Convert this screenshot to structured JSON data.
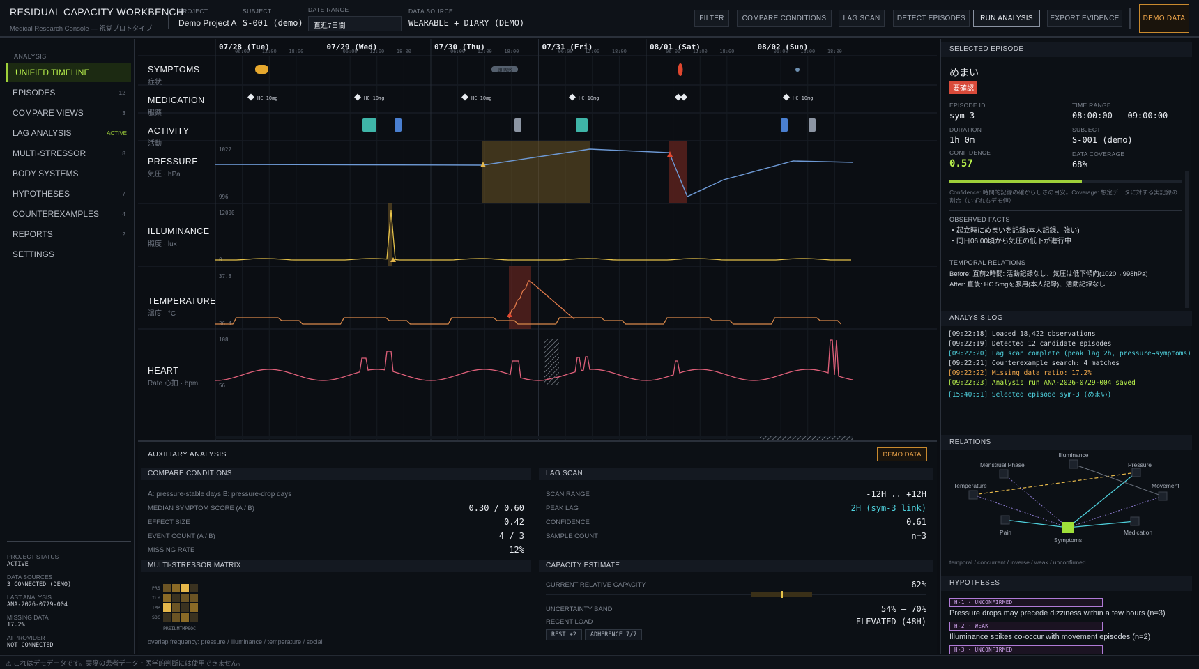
{
  "header": {
    "title": "RESIDUAL CAPACITY WORKBENCH",
    "subtitle": "Medical Research Console — 視覚プロトタイプ",
    "project_label": "PROJECT",
    "project_value": "Demo Project A",
    "subject_label": "SUBJECT",
    "subject_value": "S-001 (demo)",
    "range_label": "DATE RANGE",
    "range_value": "直近7日間",
    "source_label": "DATA SOURCE",
    "source_value": "WEARABLE + DIARY (DEMO)",
    "buttons": {
      "filter": "FILTER",
      "compare": "COMPARE CONDITIONS",
      "lag": "LAG SCAN",
      "detect": "DETECT EPISODES",
      "run": "RUN ANALYSIS",
      "export": "EXPORT EVIDENCE",
      "demo": "DEMO DATA"
    }
  },
  "sidebar": {
    "heading": "ANALYSIS",
    "items": [
      {
        "label": "UNIFIED TIMELINE",
        "count": ""
      },
      {
        "label": "EPISODES",
        "count": "12"
      },
      {
        "label": "COMPARE VIEWS",
        "count": "3"
      },
      {
        "label": "LAG ANALYSIS",
        "count": "ACTIVE"
      },
      {
        "label": "MULTI-STRESSOR",
        "count": "8"
      },
      {
        "label": "BODY SYSTEMS",
        "count": ""
      },
      {
        "label": "HYPOTHESES",
        "count": "7"
      },
      {
        "label": "COUNTEREXAMPLES",
        "count": "4"
      },
      {
        "label": "REPORTS",
        "count": "2"
      },
      {
        "label": "SETTINGS",
        "count": ""
      }
    ],
    "status": [
      {
        "k": "PROJECT STATUS",
        "v": "ACTIVE"
      },
      {
        "k": "DATA SOURCES",
        "v": "3 CONNECTED (DEMO)"
      },
      {
        "k": "LAST ANALYSIS",
        "v": "ANA-2026-0729-004"
      },
      {
        "k": "MISSING DATA",
        "v": "17.2%"
      },
      {
        "k": "AI PROVIDER",
        "v": "NOT CONNECTED"
      }
    ]
  },
  "timeline": {
    "days": [
      "07/28 (Tue)",
      "07/29 (Wed)",
      "07/30 (Thu)",
      "07/31 (Fri)",
      "08/01 (Sat)",
      "08/02 (Sun)"
    ],
    "hours": [
      "06:00",
      "12:00",
      "18:00"
    ],
    "lanes": [
      {
        "title": "SYMPTOMS",
        "sub": "症状"
      },
      {
        "title": "MEDICATION",
        "sub": "服薬"
      },
      {
        "title": "ACTIVITY",
        "sub": "活動"
      },
      {
        "title": "PRESSURE",
        "sub": "気圧 · hPa"
      },
      {
        "title": "ILLUMINANCE",
        "sub": "照度 · lux"
      },
      {
        "title": "TEMPERATURE",
        "sub": "温度 · °C"
      },
      {
        "title": "HEART",
        "sub": "Rate 心拍 · bpm"
      }
    ],
    "med_label": "HC 10mg",
    "symptom_chip": "頭痛感",
    "pressure_ticks": [
      "1022",
      "996"
    ],
    "illum_ticks": [
      "12000",
      "0"
    ],
    "temp_ticks": [
      "37.8",
      "36.4"
    ],
    "heart_ticks": [
      "108",
      "56"
    ]
  },
  "aux": {
    "title": "AUXILIARY ANALYSIS",
    "demo": "DEMO DATA",
    "compare": {
      "title": "COMPARE CONDITIONS",
      "desc": "A: pressure-stable days   B: pressure-drop days",
      "rows": [
        {
          "k": "MEDIAN SYMPTOM SCORE (A / B)",
          "v": "0.30 / 0.60"
        },
        {
          "k": "EFFECT SIZE",
          "v": "0.42"
        },
        {
          "k": "EVENT COUNT (A / B)",
          "v": "4 / 3"
        },
        {
          "k": "MISSING RATE",
          "v": "12%"
        }
      ]
    },
    "lag": {
      "title": "LAG SCAN",
      "rows": [
        {
          "k": "SCAN RANGE",
          "v": "-12H .. +12H"
        },
        {
          "k": "PEAK LAG",
          "v": "2H (sym-3 link)"
        },
        {
          "k": "CONFIDENCE",
          "v": "0.61"
        },
        {
          "k": "SAMPLE COUNT",
          "v": "n=3"
        }
      ]
    },
    "matrix": {
      "title": "MULTI-STRESSOR MATRIX",
      "rows": [
        "PRS",
        "ILM",
        "TMP",
        "SOC"
      ],
      "cols": "PRSILMTMPSOC",
      "note": "overlap frequency: pressure / illuminance / temperature / social"
    },
    "capacity": {
      "title": "CAPACITY ESTIMATE",
      "current_k": "CURRENT RELATIVE CAPACITY",
      "current_v": "62%",
      "current_frac": 0.62,
      "band_k": "UNCERTAINTY BAND",
      "band_v": "54% – 70%",
      "load_k": "RECENT LOAD",
      "load_v": "ELEVATED (48H)",
      "chips": [
        "REST +2",
        "ADHERENCE 7/7"
      ]
    }
  },
  "episode": {
    "header": "SELECTED EPISODE",
    "name": "めまい",
    "badge": "要確認",
    "id_l": "EPISODE ID",
    "id_v": "sym-3",
    "tr_l": "TIME RANGE",
    "tr_v": "08:00:00 - 09:00:00",
    "dur_l": "DURATION",
    "dur_v": "1h 0m",
    "sub_l": "SUBJECT",
    "sub_v": "S-001 (demo)",
    "conf_l": "CONFIDENCE",
    "conf_v": "0.57",
    "conf_frac": 0.57,
    "cov_l": "DATA COVERAGE",
    "cov_v": "68%",
    "note": "Confidence: 時間的記録の確からしさの目安。Coverage: 想定データに対する実記録の割合（いずれもデモ値）",
    "facts_h": "OBSERVED FACTS",
    "facts": [
      "・起立時にめまいを記録(本人記録、強い)",
      "・同日06:00頃から気圧の低下が進行中"
    ],
    "rel_h": "TEMPORAL RELATIONS",
    "rel": [
      "Before: 直前2時間: 活動記録なし、気圧は低下傾向(1020→998hPa)",
      "After:  直後: HC 5mgを服用(本人記録)、活動記録なし"
    ]
  },
  "log": {
    "header": "ANALYSIS LOG",
    "lines": [
      {
        "t": "[09:22:18] Loaded 18,422 observations",
        "c": "#cfd4db"
      },
      {
        "t": "[09:22:19] Detected 12 candidate episodes",
        "c": "#cfd4db"
      },
      {
        "t": "[09:22:20] Lag scan complete (peak lag 2h, pressure→symptoms)",
        "c": "#4fd1dd"
      },
      {
        "t": "[09:22:21] Counterexample search: 4 matches",
        "c": "#cfd4db"
      },
      {
        "t": "[09:22:22] Missing data ratio: 17.2%",
        "c": "#f0a74b"
      },
      {
        "t": "[09:22:23] Analysis run ANA-2026-0729-004 saved",
        "c": "#b8f04c"
      },
      {
        "t": "[15:40:51] Selected episode sym-3 (めまい)",
        "c": "#4fd1dd"
      }
    ]
  },
  "relations": {
    "header": "RELATIONS",
    "nodes": {
      "menstrual": "Menstrual Phase",
      "illuminance": "Illuminance",
      "pressure": "Pressure",
      "temperature": "Temperature",
      "movement": "Movement",
      "pain": "Pain",
      "symptoms": "Symptoms",
      "medication": "Medication"
    },
    "legend": "temporal / concurrent / inverse / weak / unconfirmed"
  },
  "hypotheses": {
    "header": "HYPOTHESES",
    "items": [
      {
        "tag": "H-1 · UNCONFIRMED",
        "text": "Pressure drops may precede dizziness within a few hours (n=3)"
      },
      {
        "tag": "H-2 · WEAK",
        "text": "Illuminance spikes co-occur with movement episodes (n=2)"
      },
      {
        "tag": "H-3 · UNCONFIRMED",
        "text": ""
      }
    ]
  },
  "footer": "⚠ これはデモデータです。実際の患者データ・医学的判断には使用できません。"
}
